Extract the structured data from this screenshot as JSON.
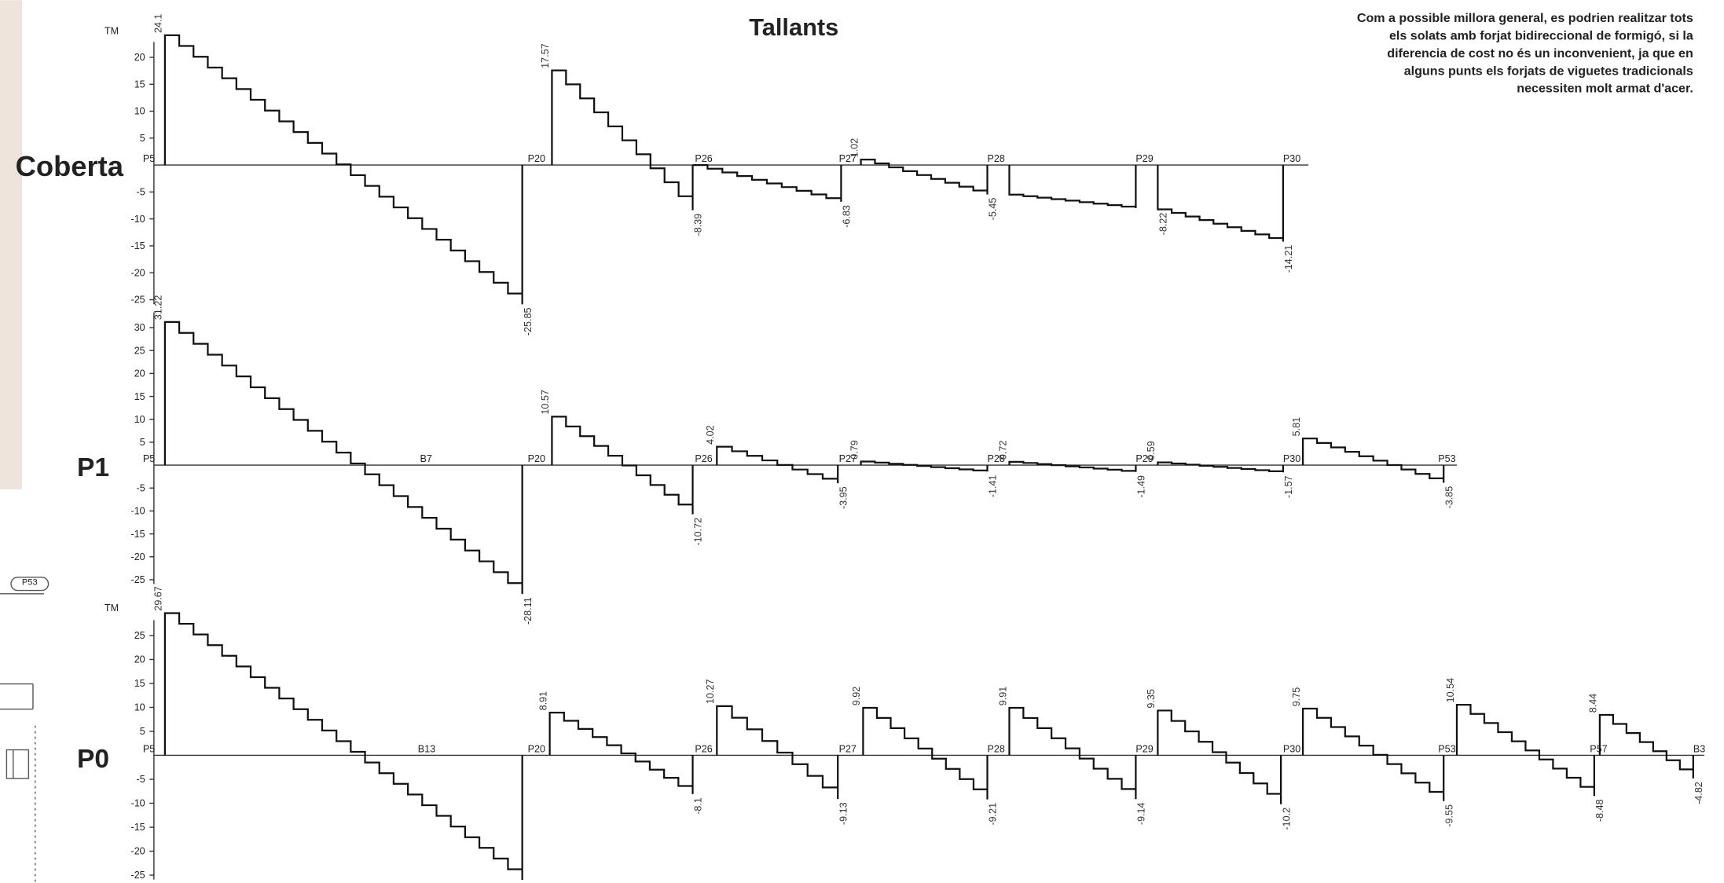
{
  "title": "Tallants",
  "note": [
    "Com a possible millora general, es podrien realitzar tots",
    "els solats amb forjat bidireccional de formigó, si la",
    "diferencia de cost no és un inconvenient, ja que en",
    "alguns punts els forjats de viguetes tradicionals",
    "necessiten molt armat d'acer."
  ],
  "fragment_label": "P53",
  "panels": [
    {
      "name": "Coberta",
      "unit": "TM",
      "yticks": [
        20,
        15,
        10,
        5,
        -5,
        -10,
        -15,
        -20,
        -25
      ],
      "supports": [
        "P5",
        "P20",
        "P26",
        "P27",
        "P28",
        "P29",
        "P30"
      ],
      "spans": [
        {
          "start": 24.1,
          "end": -25.85
        },
        {
          "start": 17.57,
          "end": -8.39
        },
        {
          "start_est": 0,
          "end": -6.83
        },
        {
          "start": 1.02,
          "end": -5.45
        },
        {
          "start_est": -5.5,
          "end_est": -8
        },
        {
          "start": -8.22,
          "end": -14.21
        }
      ]
    },
    {
      "name": "P1",
      "yticks": [
        30,
        25,
        20,
        15,
        10,
        5,
        -5,
        -10,
        -15,
        -20,
        -25
      ],
      "supports": [
        "P5",
        "B7",
        "P20",
        "P26",
        "P27",
        "P28",
        "P29",
        "P30",
        "P53"
      ],
      "spans": [
        {
          "start": 31.22,
          "end": -28.11
        },
        {
          "start": 10.57,
          "end": -10.72
        },
        {
          "start": 4.02,
          "end": -3.95
        },
        {
          "start": 0.79,
          "end": -1.41
        },
        {
          "start": 0.72,
          "end": -1.49
        },
        {
          "start": 0.59,
          "end": -1.57
        },
        {
          "start": 5.81,
          "end": -3.85
        }
      ]
    },
    {
      "name": "P0",
      "unit": "TM",
      "yticks": [
        25,
        20,
        15,
        10,
        5,
        -5,
        -10,
        -15,
        -20,
        -25
      ],
      "supports": [
        "P5",
        "B13",
        "P20",
        "P26",
        "P27",
        "P28",
        "P29",
        "P30",
        "P53",
        "P57",
        "B3"
      ],
      "spans": [
        {
          "start": 29.67,
          "end": -25.99
        },
        {
          "start": 8.91,
          "end": -8.1
        },
        {
          "start": 10.27,
          "end": -9.13
        },
        {
          "start": 9.92,
          "end": -9.21
        },
        {
          "start": 9.91,
          "end": -9.14
        },
        {
          "start": 9.35,
          "end": -10.2
        },
        {
          "start": 9.75,
          "end": -9.55
        },
        {
          "start": 10.54,
          "end": -8.48
        },
        {
          "start": 8.44,
          "end": -4.82
        }
      ]
    }
  ]
}
